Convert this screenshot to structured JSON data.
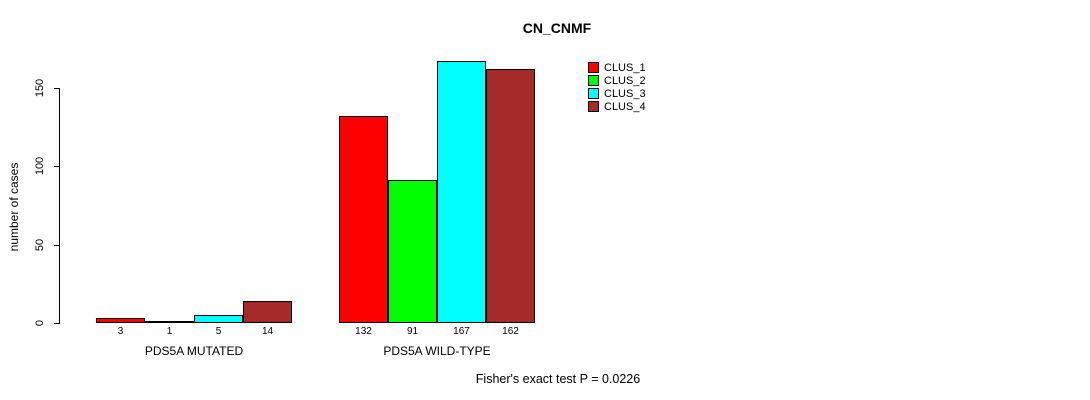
{
  "chart_data": {
    "type": "bar",
    "title": "CN_CNMF",
    "ylabel": "number of cases",
    "xlabel": "",
    "yticks": [
      0,
      50,
      100,
      150
    ],
    "ylim": [
      0,
      172
    ],
    "grid": false,
    "legend_position": "top-right-inside",
    "categories": [
      "PDS5A MUTATED",
      "PDS5A WILD-TYPE"
    ],
    "series": [
      {
        "name": "CLUS_1",
        "color": "#ff0000",
        "values": [
          3,
          132
        ]
      },
      {
        "name": "CLUS_2",
        "color": "#00ff00",
        "values": [
          1,
          91
        ]
      },
      {
        "name": "CLUS_3",
        "color": "#00ffff",
        "values": [
          5,
          167
        ]
      },
      {
        "name": "CLUS_4",
        "color": "#a52a2a",
        "values": [
          14,
          162
        ]
      }
    ],
    "bar_value_labels": [
      [
        3,
        1,
        5,
        14
      ],
      [
        132,
        91,
        167,
        162
      ]
    ],
    "annotation": "Fisher's exact test P = 0.0226"
  }
}
